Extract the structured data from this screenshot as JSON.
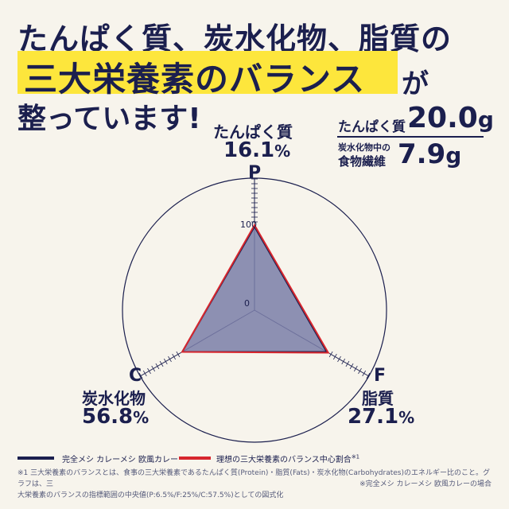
{
  "headline": {
    "line1": "たんぱく質、炭水化物、脂質の",
    "line2": "三大栄養素のバランス",
    "line2_suffix": "が",
    "line3": "整っています!"
  },
  "stats": {
    "protein_label": "たんぱく質",
    "protein_value": "20.0",
    "protein_unit": "g",
    "fiber_label_line1": "炭水化物中の",
    "fiber_label_line2": "食物繊維",
    "fiber_value": "7.9",
    "fiber_unit": "g"
  },
  "chart_data": {
    "type": "radar",
    "axes": [
      {
        "letter": "P",
        "name": "たんぱく質",
        "value": "16.1",
        "unit": "%"
      },
      {
        "letter": "F",
        "name": "脂質",
        "value": "27.1",
        "unit": "%"
      },
      {
        "letter": "C",
        "name": "炭水化物",
        "value": "56.8",
        "unit": "%"
      }
    ],
    "tick_labels": [
      "100",
      "0"
    ],
    "scale_max": 100,
    "series": [
      {
        "name": "完全メシ カレーメシ 欧風カレー",
        "color": "#1b1f4e",
        "values": [
          100,
          100,
          100
        ]
      },
      {
        "name": "理想の三大栄養素のバランス中心割合",
        "name_note": "※1",
        "color": "#d7262e",
        "values": [
          100,
          100,
          100
        ]
      }
    ]
  },
  "footnotes": {
    "note1_line1": "※1 三大栄養素のバランスとは、食事の三大栄養素であるたんぱく質(Protein)・脂質(Fats)・炭水化物(Carbohydrates)のエネルギー比のこと。グラフは、三",
    "note1_line2": "大栄養素のバランスの指標範囲の中央値(P:6.5%/F:25%/C:57.5%)としての図式化",
    "note2": "※完全メシ カレーメシ 欧風カレーの場合"
  },
  "colors": {
    "background": "#f7f4ec",
    "navy": "#1b1f4e",
    "highlight": "#fde63c",
    "red": "#d7262e",
    "fill": "#7a7ea8"
  }
}
